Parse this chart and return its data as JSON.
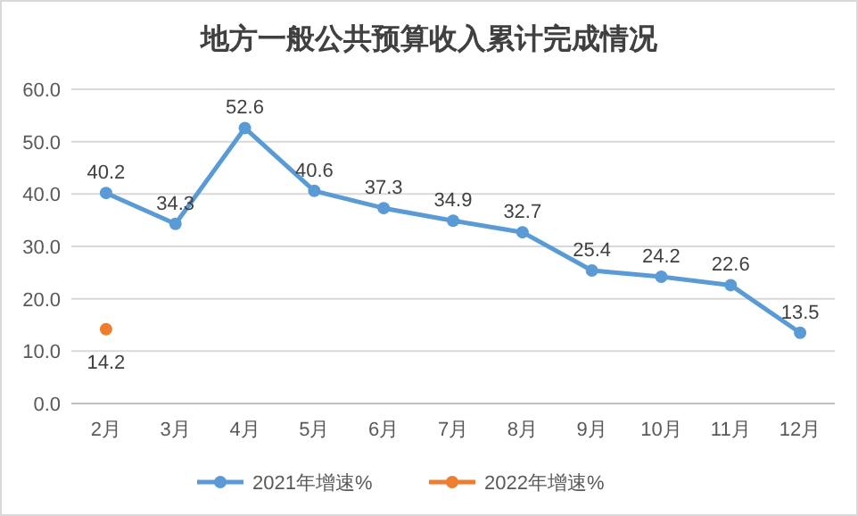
{
  "chart_data": {
    "type": "line",
    "title": "地方一般公共预算收入累计完成情况",
    "categories": [
      "2月",
      "3月",
      "4月",
      "5月",
      "6月",
      "7月",
      "8月",
      "9月",
      "10月",
      "11月",
      "12月"
    ],
    "series": [
      {
        "name": "2021年增速%",
        "color": "#5b9bd5",
        "values": [
          40.2,
          34.3,
          52.6,
          40.6,
          37.3,
          34.9,
          32.7,
          25.4,
          24.2,
          22.6,
          13.5
        ]
      },
      {
        "name": "2022年增速%",
        "color": "#ed7d31",
        "values": [
          14.2,
          null,
          null,
          null,
          null,
          null,
          null,
          null,
          null,
          null,
          null
        ]
      }
    ],
    "ylim": [
      0,
      60
    ],
    "yticks": [
      {
        "value": 0,
        "label": "0.0"
      },
      {
        "value": 10,
        "label": "10.0"
      },
      {
        "value": 20,
        "label": "20.0"
      },
      {
        "value": 30,
        "label": "30.0"
      },
      {
        "value": 40,
        "label": "40.0"
      },
      {
        "value": 50,
        "label": "50.0"
      },
      {
        "value": 60,
        "label": "60.0"
      }
    ],
    "grid": "y",
    "legend": "bottom",
    "marker": "circle",
    "data_labels": true
  }
}
